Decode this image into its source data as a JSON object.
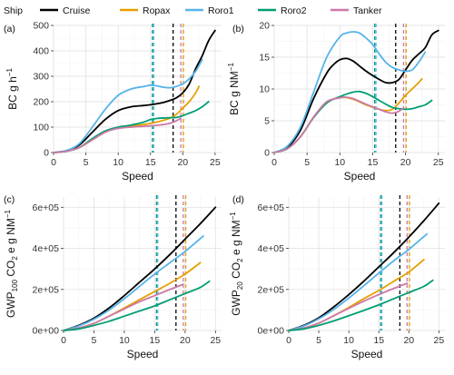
{
  "legend": {
    "title": "Ship",
    "items": [
      {
        "name": "Cruise",
        "color": "#000000"
      },
      {
        "name": "Ropax",
        "color": "#E69F00"
      },
      {
        "name": "Roro1",
        "color": "#56B4E9"
      },
      {
        "name": "Roro2",
        "color": "#009E73"
      },
      {
        "name": "Tanker",
        "color": "#CC79A7"
      }
    ]
  },
  "chart_data": [
    {
      "id": "a",
      "panel_label": "(a)",
      "type": "line",
      "xlabel": "Speed",
      "ylabel": "BC g h⁻¹",
      "ylabel_parts": [
        "BC g h",
        "−1"
      ],
      "xlim": [
        0,
        26
      ],
      "ylim": [
        0,
        500
      ],
      "xticks": [
        0,
        5,
        10,
        15,
        20,
        25
      ],
      "xtick_labels": [
        "0",
        "5",
        "10",
        "15",
        "20",
        "25"
      ],
      "yticks": [
        0,
        100,
        200,
        300,
        400,
        500
      ],
      "ytick_labels": [
        "0",
        "100",
        "200",
        "300",
        "400",
        "500"
      ],
      "vlines": [
        {
          "x": 15.3,
          "color": "#009E73"
        },
        {
          "x": 15.5,
          "color": "#56B4E9"
        },
        {
          "x": 18.5,
          "color": "#000000"
        },
        {
          "x": 19.7,
          "color": "#CC79A7"
        },
        {
          "x": 20.1,
          "color": "#E69F00"
        }
      ],
      "series": [
        {
          "name": "Cruise",
          "color": "#000000",
          "x": [
            0,
            2,
            4,
            6,
            8,
            10,
            12,
            14,
            15,
            16,
            17,
            18,
            19,
            20,
            21,
            22,
            23,
            24,
            25
          ],
          "y": [
            0,
            7,
            30,
            80,
            130,
            165,
            180,
            185,
            188,
            192,
            197,
            205,
            215,
            235,
            270,
            330,
            380,
            440,
            480
          ]
        },
        {
          "name": "Ropax",
          "color": "#E69F00",
          "x": [
            0,
            2,
            4,
            6,
            8,
            10,
            12,
            14,
            16,
            18,
            19,
            20,
            21,
            22,
            22.5
          ],
          "y": [
            0,
            5,
            20,
            50,
            80,
            100,
            105,
            110,
            120,
            135,
            150,
            175,
            200,
            235,
            260
          ]
        },
        {
          "name": "Roro1",
          "color": "#56B4E9",
          "x": [
            0,
            2,
            4,
            6,
            8,
            10,
            12,
            14,
            15,
            16,
            17,
            18,
            19,
            20,
            21,
            22,
            23
          ],
          "y": [
            0,
            8,
            35,
            100,
            170,
            225,
            250,
            260,
            265,
            262,
            257,
            255,
            260,
            270,
            290,
            320,
            365
          ]
        },
        {
          "name": "Roro2",
          "color": "#009E73",
          "x": [
            0,
            2,
            4,
            6,
            8,
            10,
            12,
            14,
            15,
            16,
            17,
            18,
            19,
            20,
            21,
            22,
            23,
            24
          ],
          "y": [
            0,
            5,
            20,
            55,
            85,
            100,
            108,
            120,
            130,
            134,
            136,
            137,
            138,
            145,
            155,
            165,
            180,
            200
          ]
        },
        {
          "name": "Tanker",
          "color": "#CC79A7",
          "x": [
            0,
            2,
            4,
            6,
            8,
            10,
            12,
            14,
            16,
            17,
            18,
            19,
            19.7
          ],
          "y": [
            0,
            5,
            20,
            50,
            80,
            95,
            100,
            103,
            107,
            110,
            115,
            125,
            135
          ]
        }
      ]
    },
    {
      "id": "b",
      "panel_label": "(b)",
      "type": "line",
      "xlabel": "Speed",
      "ylabel": "BC g NM⁻¹",
      "ylabel_parts": [
        "BC g NM",
        "−1"
      ],
      "xlim": [
        0,
        26
      ],
      "ylim": [
        0,
        20
      ],
      "xticks": [
        0,
        5,
        10,
        15,
        20,
        25
      ],
      "xtick_labels": [
        "0",
        "5",
        "10",
        "15",
        "20",
        "25"
      ],
      "yticks": [
        0,
        5,
        10,
        15,
        20
      ],
      "ytick_labels": [
        "0",
        "5",
        "10",
        "15",
        "20"
      ],
      "vlines": [
        {
          "x": 15.3,
          "color": "#009E73"
        },
        {
          "x": 15.5,
          "color": "#56B4E9"
        },
        {
          "x": 18.5,
          "color": "#000000"
        },
        {
          "x": 19.7,
          "color": "#CC79A7"
        },
        {
          "x": 20.1,
          "color": "#E69F00"
        }
      ],
      "series": [
        {
          "name": "Cruise",
          "color": "#000000",
          "x": [
            0,
            2,
            4,
            6,
            8,
            9,
            10,
            11,
            12,
            13,
            14,
            15,
            16,
            17,
            18,
            19,
            20,
            21,
            22,
            23,
            24,
            25
          ],
          "y": [
            0,
            0.8,
            3.5,
            8.5,
            12.5,
            13.8,
            14.6,
            14.8,
            14.4,
            13.6,
            12.8,
            12.1,
            11.5,
            11.0,
            11.0,
            11.5,
            13.0,
            14.5,
            15.5,
            16.5,
            18.5,
            19.2
          ]
        },
        {
          "name": "Ropax",
          "color": "#E69F00",
          "x": [
            0,
            2,
            4,
            6,
            8,
            10,
            12,
            14,
            16,
            17,
            18,
            19,
            20,
            21,
            22,
            22.5
          ],
          "y": [
            0,
            0.6,
            2.5,
            5.5,
            7.8,
            8.7,
            8.4,
            7.5,
            6.8,
            6.6,
            6.8,
            7.8,
            9.0,
            10.0,
            11.0,
            11.6
          ]
        },
        {
          "name": "Roro1",
          "color": "#56B4E9",
          "x": [
            0,
            2,
            4,
            6,
            8,
            10,
            11,
            12,
            13,
            14,
            15,
            16,
            17,
            18,
            19,
            20,
            21,
            22,
            23
          ],
          "y": [
            0,
            1.0,
            4.0,
            9.5,
            15.0,
            18.2,
            18.8,
            19.0,
            18.8,
            18.0,
            17.0,
            15.5,
            14.2,
            13.4,
            13.0,
            12.8,
            13.0,
            14.2,
            15.8
          ]
        },
        {
          "name": "Roro2",
          "color": "#009E73",
          "x": [
            0,
            2,
            4,
            6,
            8,
            10,
            12,
            13,
            14,
            15,
            16,
            17,
            18,
            19,
            20,
            21,
            22,
            23,
            24
          ],
          "y": [
            0,
            0.6,
            2.5,
            5.5,
            7.8,
            8.8,
            9.5,
            9.6,
            9.3,
            8.8,
            8.2,
            7.6,
            7.1,
            6.9,
            6.8,
            6.9,
            7.2,
            7.5,
            8.2
          ]
        },
        {
          "name": "Tanker",
          "color": "#CC79A7",
          "x": [
            0,
            2,
            4,
            6,
            8,
            10,
            11,
            12,
            14,
            16,
            17,
            18,
            19,
            19.7
          ],
          "y": [
            0,
            0.6,
            2.5,
            5.6,
            8.0,
            8.6,
            8.7,
            8.5,
            7.6,
            6.8,
            6.4,
            6.2,
            6.5,
            7.0
          ]
        }
      ]
    },
    {
      "id": "c",
      "panel_label": "(c)",
      "type": "line",
      "xlabel": "Speed",
      "ylabel": "GWP₁₀₀ CO₂ e g NM⁻¹",
      "ylabel_parts": [
        "GWP",
        "100",
        " CO",
        "2",
        " e g NM",
        "−1"
      ],
      "xlim": [
        0,
        26
      ],
      "ylim": [
        0,
        650000
      ],
      "xticks": [
        0,
        5,
        10,
        15,
        20,
        25
      ],
      "xtick_labels": [
        "0",
        "5",
        "10",
        "15",
        "20",
        "25"
      ],
      "yticks": [
        0,
        200000,
        400000,
        600000
      ],
      "ytick_labels": [
        "0e+00",
        "2e+05",
        "4e+05",
        "6e+05"
      ],
      "vlines": [
        {
          "x": 15.3,
          "color": "#009E73"
        },
        {
          "x": 15.5,
          "color": "#56B4E9"
        },
        {
          "x": 18.5,
          "color": "#000000"
        },
        {
          "x": 19.7,
          "color": "#CC79A7"
        },
        {
          "x": 20.1,
          "color": "#E69F00"
        }
      ],
      "series": [
        {
          "name": "Cruise",
          "color": "#000000",
          "x": [
            0,
            2.5,
            5,
            7.5,
            10,
            12.5,
            15,
            17.5,
            20,
            22.5,
            25
          ],
          "y": [
            0,
            25000,
            60000,
            110000,
            170000,
            235000,
            300000,
            370000,
            445000,
            520000,
            600000
          ]
        },
        {
          "name": "Roro1",
          "color": "#56B4E9",
          "x": [
            0,
            2.5,
            5,
            7.5,
            10,
            12.5,
            15,
            17.5,
            20,
            23
          ],
          "y": [
            0,
            22000,
            55000,
            100000,
            155000,
            215000,
            275000,
            330000,
            385000,
            460000
          ]
        },
        {
          "name": "Ropax",
          "color": "#E69F00",
          "x": [
            0,
            2.5,
            5,
            7.5,
            10,
            12.5,
            15,
            17.5,
            20,
            22.5
          ],
          "y": [
            0,
            12000,
            35000,
            70000,
            110000,
            150000,
            190000,
            230000,
            275000,
            330000
          ]
        },
        {
          "name": "Tanker",
          "color": "#CC79A7",
          "x": [
            0,
            2.5,
            5,
            7.5,
            10,
            12.5,
            15,
            17.5,
            19.7
          ],
          "y": [
            0,
            12000,
            35000,
            70000,
            105000,
            140000,
            170000,
            200000,
            225000
          ]
        },
        {
          "name": "Roro2",
          "color": "#009E73",
          "x": [
            0,
            2.5,
            5,
            7.5,
            10,
            12.5,
            15,
            17.5,
            20,
            22.5,
            24
          ],
          "y": [
            0,
            8000,
            25000,
            45000,
            70000,
            95000,
            120000,
            150000,
            180000,
            210000,
            240000
          ]
        }
      ]
    },
    {
      "id": "d",
      "panel_label": "(d)",
      "type": "line",
      "xlabel": "Speed",
      "ylabel": "GWP₂₀ CO₂ e g NM⁻¹",
      "ylabel_parts": [
        "GWP",
        "20",
        " CO",
        "2",
        " e g NM",
        "−1"
      ],
      "xlim": [
        0,
        26
      ],
      "ylim": [
        0,
        650000
      ],
      "xticks": [
        0,
        5,
        10,
        15,
        20,
        25
      ],
      "xtick_labels": [
        "0",
        "5",
        "10",
        "15",
        "20",
        "25"
      ],
      "yticks": [
        0,
        200000,
        400000,
        600000
      ],
      "ytick_labels": [
        "0e+00",
        "2e+05",
        "4e+05",
        "6e+05"
      ],
      "vlines": [
        {
          "x": 15.3,
          "color": "#009E73"
        },
        {
          "x": 15.5,
          "color": "#56B4E9"
        },
        {
          "x": 18.5,
          "color": "#000000"
        },
        {
          "x": 19.7,
          "color": "#CC79A7"
        },
        {
          "x": 20.1,
          "color": "#E69F00"
        }
      ],
      "series": [
        {
          "name": "Cruise",
          "color": "#000000",
          "x": [
            0,
            2.5,
            5,
            7.5,
            10,
            12.5,
            15,
            17.5,
            20,
            22.5,
            25
          ],
          "y": [
            0,
            25000,
            62000,
            115000,
            175000,
            240000,
            310000,
            380000,
            455000,
            535000,
            620000
          ]
        },
        {
          "name": "Roro1",
          "color": "#56B4E9",
          "x": [
            0,
            2.5,
            5,
            7.5,
            10,
            12.5,
            15,
            17.5,
            20,
            23
          ],
          "y": [
            0,
            22000,
            57000,
            103000,
            158000,
            218000,
            280000,
            340000,
            395000,
            470000
          ]
        },
        {
          "name": "Ropax",
          "color": "#E69F00",
          "x": [
            0,
            2.5,
            5,
            7.5,
            10,
            12.5,
            15,
            17.5,
            20,
            22.5
          ],
          "y": [
            0,
            12000,
            36000,
            72000,
            112000,
            155000,
            195000,
            240000,
            285000,
            345000
          ]
        },
        {
          "name": "Tanker",
          "color": "#CC79A7",
          "x": [
            0,
            2.5,
            5,
            7.5,
            10,
            12.5,
            15,
            17.5,
            19.7
          ],
          "y": [
            0,
            12000,
            36000,
            72000,
            108000,
            143000,
            175000,
            205000,
            230000
          ]
        },
        {
          "name": "Roro2",
          "color": "#009E73",
          "x": [
            0,
            2.5,
            5,
            7.5,
            10,
            12.5,
            15,
            17.5,
            20,
            22.5,
            24
          ],
          "y": [
            0,
            8000,
            25000,
            47000,
            72000,
            98000,
            125000,
            155000,
            185000,
            215000,
            245000
          ]
        }
      ]
    }
  ]
}
